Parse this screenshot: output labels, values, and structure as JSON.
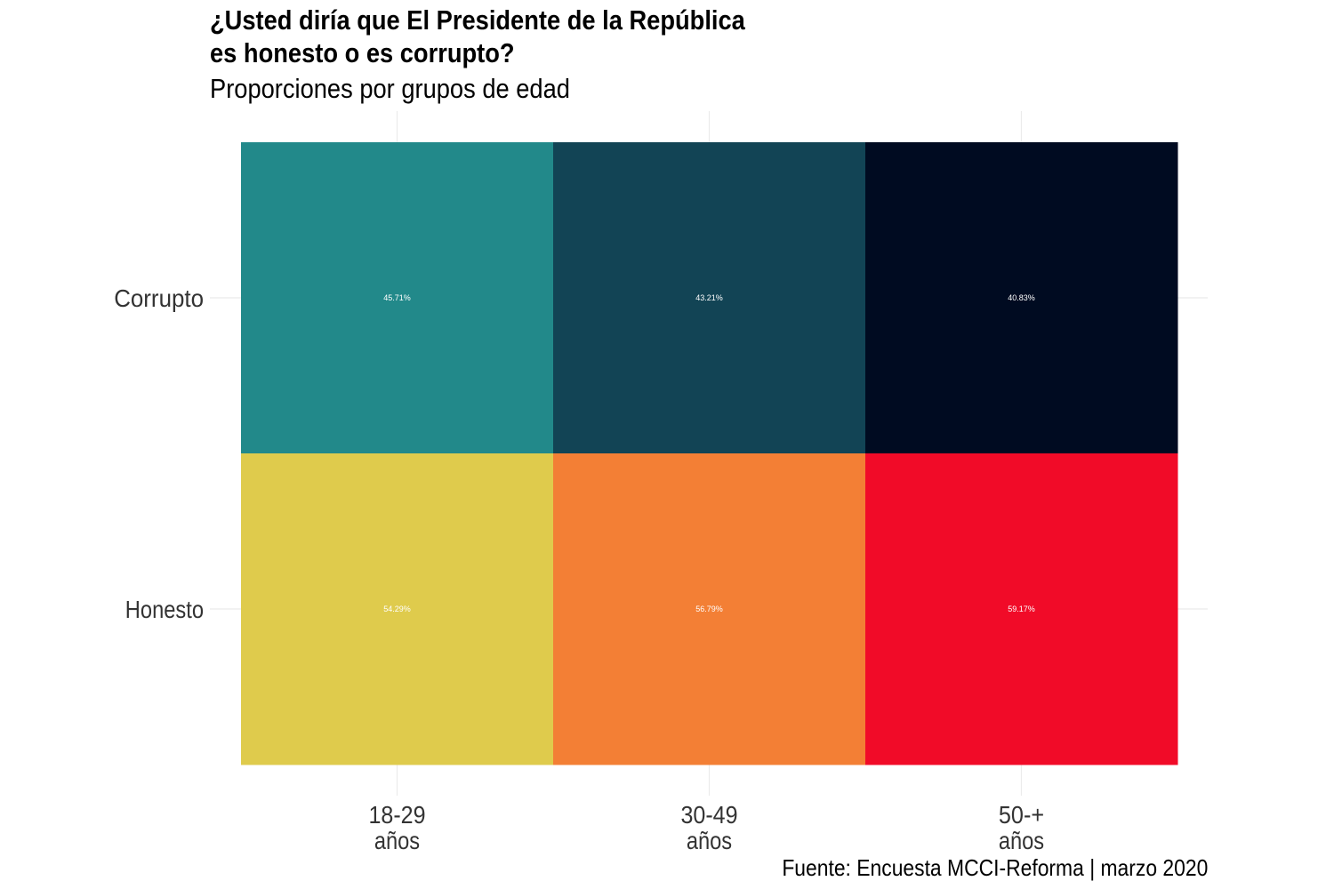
{
  "title": "¿Usted diría que El Presidente de la República es honesto o es corrupto?",
  "subtitle": "Proporciones por grupos de edad",
  "caption": "Fuente: Encuesta MCCI-Reforma | marzo 2020",
  "chart_data": {
    "type": "heatmap",
    "x_categories": [
      [
        "18-29",
        "años"
      ],
      [
        "30-49",
        "años"
      ],
      [
        "50-+",
        "años"
      ]
    ],
    "y_categories": [
      "Corrupto",
      "Honesto"
    ],
    "cells": [
      {
        "x": 0,
        "y": 0,
        "value": 45.71,
        "label": "45.71%",
        "color": "#22898a"
      },
      {
        "x": 1,
        "y": 0,
        "value": 43.21,
        "label": "43.21%",
        "color": "#124455"
      },
      {
        "x": 2,
        "y": 0,
        "value": 40.83,
        "label": "40.83%",
        "color": "#000b21"
      },
      {
        "x": 0,
        "y": 1,
        "value": 54.29,
        "label": "54.29%",
        "color": "#dfcb4c"
      },
      {
        "x": 1,
        "y": 1,
        "value": 56.79,
        "label": "56.79%",
        "color": "#f37f35"
      },
      {
        "x": 2,
        "y": 1,
        "value": 59.17,
        "label": "59.17%",
        "color": "#f10b28"
      }
    ],
    "xlabel": "",
    "ylabel": "",
    "grid": true,
    "legend": "none"
  }
}
